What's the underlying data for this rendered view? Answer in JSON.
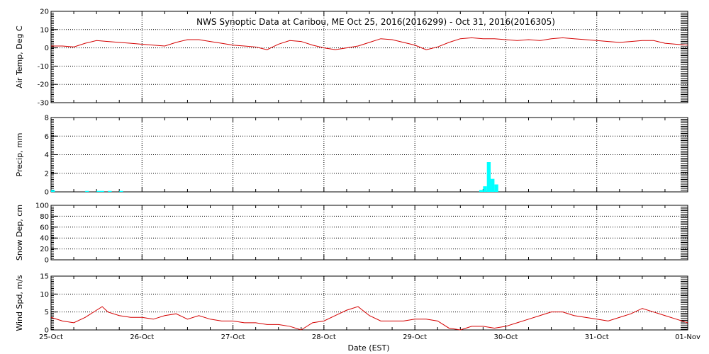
{
  "chart_data": {
    "type": "multi-panel-timeseries",
    "title": "NWS Synoptic Data at Caribou, ME   Oct 25, 2016(2016299) - Oct 31, 2016(2016305)",
    "xlabel": "Date (EST)",
    "x_ticks": [
      "25-Oct",
      "26-Oct",
      "27-Oct",
      "28-Oct",
      "29-Oct",
      "30-Oct",
      "31-Oct",
      "01-Nov"
    ],
    "x_range_days": [
      0,
      7
    ],
    "grid": true,
    "colors": {
      "line": "#d40000",
      "precip": "#00ffff"
    },
    "panels": [
      {
        "id": "temp",
        "type": "line",
        "ylabel": "Air Temp, Deg C",
        "ylim": [
          -30,
          20
        ],
        "yticks": [
          20,
          10,
          0,
          -10,
          -20,
          -30
        ],
        "x": [
          0,
          0.125,
          0.25,
          0.375,
          0.5,
          0.625,
          0.75,
          0.875,
          1.0,
          1.125,
          1.25,
          1.375,
          1.5,
          1.625,
          1.75,
          1.875,
          2.0,
          2.125,
          2.25,
          2.375,
          2.5,
          2.625,
          2.75,
          2.875,
          3.0,
          3.125,
          3.25,
          3.375,
          3.5,
          3.625,
          3.75,
          3.875,
          4.0,
          4.125,
          4.25,
          4.375,
          4.5,
          4.625,
          4.75,
          4.875,
          5.0,
          5.125,
          5.25,
          5.375,
          5.5,
          5.625,
          5.75,
          5.875,
          6.0,
          6.125,
          6.25,
          6.375,
          6.5,
          6.625,
          6.75,
          6.875,
          7.0
        ],
        "values": [
          1,
          1,
          0.5,
          2.5,
          4,
          3.5,
          3,
          2.5,
          2,
          1.5,
          1,
          3,
          4.5,
          4.5,
          3.5,
          2.5,
          1.5,
          1,
          0.5,
          -1,
          2,
          4,
          3.5,
          1.5,
          0,
          -1,
          0,
          1,
          3,
          5,
          4.5,
          3,
          1.5,
          -1,
          0.5,
          3,
          5,
          5.5,
          5,
          5,
          4.5,
          4,
          4.5,
          4,
          5,
          5.5,
          5,
          4.5,
          4,
          3.5,
          3,
          3.5,
          4,
          4,
          2.5,
          2,
          1.5
        ]
      },
      {
        "id": "precip",
        "type": "bar",
        "ylabel": "Precip, mm",
        "ylim": [
          0,
          8
        ],
        "yticks": [
          8,
          6,
          4,
          2,
          0
        ],
        "x": [
          0.0,
          0.375,
          0.5,
          0.5417,
          0.625,
          0.75,
          4.7083,
          4.75,
          4.7917,
          4.8333,
          4.875
        ],
        "bin_width_days": 0.0417,
        "values": [
          0.2,
          0.1,
          0.1,
          0.1,
          0.1,
          0.1,
          0.2,
          0.6,
          3.2,
          1.4,
          0.8
        ]
      },
      {
        "id": "snow",
        "type": "line",
        "ylabel": "Snow Dep, cm",
        "ylim": [
          0,
          100
        ],
        "yticks": [
          100,
          80,
          60,
          40,
          20,
          0
        ],
        "x": [],
        "values": []
      },
      {
        "id": "wind",
        "type": "line",
        "ylabel": "Wind Spd, m/s",
        "ylim": [
          0,
          15
        ],
        "yticks": [
          15,
          10,
          5,
          0
        ],
        "x": [
          0,
          0.125,
          0.25,
          0.375,
          0.5,
          0.5625,
          0.625,
          0.75,
          0.875,
          1.0,
          1.125,
          1.25,
          1.375,
          1.5,
          1.625,
          1.75,
          1.875,
          2.0,
          2.125,
          2.25,
          2.375,
          2.5,
          2.625,
          2.75,
          2.875,
          3.0,
          3.125,
          3.25,
          3.375,
          3.5,
          3.625,
          3.75,
          3.875,
          4.0,
          4.125,
          4.25,
          4.375,
          4.5,
          4.625,
          4.75,
          4.875,
          5.0,
          5.125,
          5.25,
          5.375,
          5.5,
          5.625,
          5.75,
          5.875,
          6.0,
          6.125,
          6.25,
          6.375,
          6.5,
          6.625,
          6.75,
          6.875,
          7.0
        ],
        "values": [
          3.5,
          2.5,
          2,
          3.5,
          5.5,
          6.5,
          5,
          4,
          3.5,
          3.5,
          3,
          4,
          4.5,
          3,
          4,
          3,
          2.5,
          2.5,
          2,
          2,
          1.5,
          1.5,
          1,
          0,
          2,
          2.5,
          4,
          5.5,
          6.5,
          4,
          2.5,
          2.5,
          2.5,
          3,
          3,
          2.5,
          0.5,
          0,
          1,
          1,
          0.5,
          1,
          2,
          3,
          4,
          5,
          5,
          4,
          3.5,
          3,
          2.5,
          3.5,
          4.5,
          6,
          5,
          4,
          3,
          2
        ]
      }
    ]
  }
}
